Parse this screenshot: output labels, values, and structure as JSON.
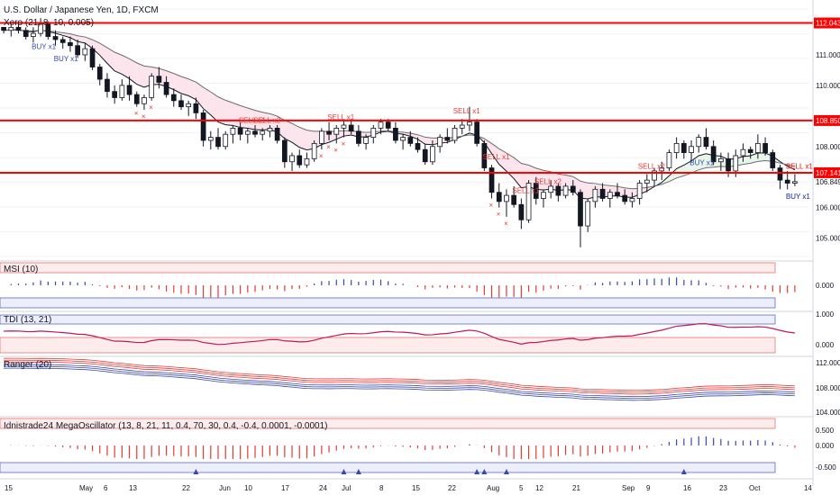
{
  "header": {
    "symbol_title": "U.S. Dollar / Japanese Yen, 1D, FXCM",
    "overlay_label": "Xero (21, 8, 10, 0.005)"
  },
  "colors": {
    "up_candle": "#ffffff",
    "down_candle": "#131722",
    "level_line": "#ff0000",
    "sell": "#e53935",
    "buy": "#3949ab",
    "ema_fast": "#131722",
    "ema_slow": "#6d6d6d",
    "band_pink": "#fce4ec",
    "band_green": "#e8f5e9",
    "band_blue": "#e8eaf6"
  },
  "chart_data": {
    "type": "candlestick",
    "price_axis": {
      "ticks": [
        "112.043",
        "111.000",
        "110.000",
        "108.850",
        "108.000",
        "107.141",
        "106.849",
        "106.000",
        "105.000"
      ],
      "level_lines": [
        112.043,
        108.85,
        107.141
      ],
      "current_price": 106.849
    },
    "x_axis": {
      "ticks": [
        "15",
        "May",
        "6",
        "13",
        "22",
        "Jun",
        "10",
        "17",
        "24",
        "Jul",
        "8",
        "15",
        "22",
        "Aug",
        "5",
        "12",
        "21",
        "Sep",
        "9",
        "16",
        "23",
        "Oct",
        "14"
      ]
    },
    "candles": [
      [
        111.9,
        111.9,
        111.7,
        111.8
      ],
      [
        111.8,
        112.0,
        111.6,
        111.9
      ],
      [
        111.9,
        112.1,
        111.7,
        111.8
      ],
      [
        111.8,
        111.9,
        111.5,
        111.6
      ],
      [
        111.6,
        111.9,
        111.4,
        111.7
      ],
      [
        111.7,
        112.2,
        111.6,
        112.0
      ],
      [
        112.0,
        112.1,
        111.5,
        111.6
      ],
      [
        111.6,
        111.8,
        111.3,
        111.5
      ],
      [
        111.5,
        111.6,
        111.2,
        111.4
      ],
      [
        111.4,
        111.6,
        111.1,
        111.3
      ],
      [
        111.3,
        111.5,
        110.9,
        111.0
      ],
      [
        111.0,
        111.4,
        110.8,
        111.2
      ],
      [
        111.2,
        111.3,
        110.5,
        110.6
      ],
      [
        110.6,
        110.7,
        110.0,
        110.2
      ],
      [
        110.2,
        110.4,
        109.6,
        109.8
      ],
      [
        109.8,
        110.0,
        109.4,
        109.6
      ],
      [
        109.6,
        110.2,
        109.5,
        110.0
      ],
      [
        110.0,
        110.3,
        109.5,
        109.7
      ],
      [
        109.7,
        109.8,
        109.3,
        109.4
      ],
      [
        109.4,
        109.7,
        109.2,
        109.6
      ],
      [
        109.6,
        110.4,
        109.5,
        110.3
      ],
      [
        110.3,
        110.6,
        109.9,
        110.1
      ],
      [
        110.1,
        110.3,
        109.6,
        109.7
      ],
      [
        109.7,
        109.9,
        109.3,
        109.5
      ],
      [
        109.5,
        109.7,
        109.2,
        109.3
      ],
      [
        109.3,
        109.5,
        109.0,
        109.4
      ],
      [
        109.4,
        109.6,
        108.9,
        109.1
      ],
      [
        109.1,
        109.2,
        108.0,
        108.2
      ],
      [
        108.2,
        108.5,
        107.9,
        108.3
      ],
      [
        108.3,
        108.6,
        107.9,
        108.0
      ],
      [
        108.0,
        108.5,
        107.9,
        108.4
      ],
      [
        108.4,
        108.7,
        108.1,
        108.6
      ],
      [
        108.6,
        108.8,
        108.2,
        108.4
      ],
      [
        108.4,
        108.6,
        108.1,
        108.5
      ],
      [
        108.5,
        108.7,
        108.3,
        108.4
      ],
      [
        108.4,
        108.6,
        108.2,
        108.5
      ],
      [
        108.5,
        108.7,
        108.3,
        108.6
      ],
      [
        108.6,
        108.7,
        108.1,
        108.2
      ],
      [
        108.2,
        108.3,
        107.3,
        107.5
      ],
      [
        107.5,
        107.8,
        107.2,
        107.7
      ],
      [
        107.7,
        107.9,
        107.3,
        107.4
      ],
      [
        107.4,
        107.8,
        107.3,
        107.6
      ],
      [
        107.6,
        108.2,
        107.5,
        108.1
      ],
      [
        108.1,
        108.6,
        107.9,
        108.5
      ],
      [
        108.5,
        108.8,
        108.2,
        108.4
      ],
      [
        108.4,
        108.7,
        108.1,
        108.6
      ],
      [
        108.6,
        108.9,
        108.3,
        108.7
      ],
      [
        108.7,
        108.9,
        108.4,
        108.5
      ],
      [
        108.5,
        108.7,
        108.0,
        108.1
      ],
      [
        108.1,
        108.4,
        107.9,
        108.3
      ],
      [
        108.3,
        108.7,
        108.1,
        108.6
      ],
      [
        108.6,
        108.9,
        108.4,
        108.8
      ],
      [
        108.8,
        108.9,
        108.5,
        108.6
      ],
      [
        108.6,
        108.8,
        108.1,
        108.2
      ],
      [
        108.2,
        108.4,
        107.9,
        108.3
      ],
      [
        108.3,
        108.5,
        108.0,
        108.1
      ],
      [
        108.1,
        108.3,
        107.8,
        107.9
      ],
      [
        107.9,
        108.1,
        107.4,
        107.5
      ],
      [
        107.5,
        108.2,
        107.4,
        108.0
      ],
      [
        108.0,
        108.4,
        107.8,
        108.3
      ],
      [
        108.3,
        108.6,
        108.1,
        108.2
      ],
      [
        108.2,
        108.7,
        108.1,
        108.6
      ],
      [
        108.6,
        108.9,
        108.4,
        108.7
      ],
      [
        108.7,
        109.3,
        108.5,
        108.8
      ],
      [
        108.8,
        108.9,
        108.0,
        108.1
      ],
      [
        108.1,
        108.2,
        107.2,
        107.3
      ],
      [
        107.3,
        107.4,
        106.3,
        106.5
      ],
      [
        106.5,
        106.8,
        106.0,
        106.2
      ],
      [
        106.2,
        106.6,
        105.7,
        106.4
      ],
      [
        106.4,
        106.7,
        106.0,
        106.1
      ],
      [
        106.1,
        106.3,
        105.3,
        105.6
      ],
      [
        105.6,
        106.9,
        105.5,
        106.8
      ],
      [
        106.8,
        107.0,
        106.1,
        106.3
      ],
      [
        106.3,
        106.6,
        106.0,
        106.5
      ],
      [
        106.5,
        106.9,
        106.3,
        106.7
      ],
      [
        106.7,
        106.8,
        106.2,
        106.4
      ],
      [
        106.4,
        106.8,
        106.3,
        106.7
      ],
      [
        106.7,
        106.9,
        106.4,
        106.5
      ],
      [
        106.5,
        106.6,
        104.7,
        105.4
      ],
      [
        105.4,
        106.3,
        105.2,
        106.2
      ],
      [
        106.2,
        106.7,
        106.0,
        106.6
      ],
      [
        106.6,
        106.8,
        106.2,
        106.3
      ],
      [
        106.3,
        106.6,
        106.0,
        106.5
      ],
      [
        106.5,
        106.8,
        106.3,
        106.4
      ],
      [
        106.4,
        106.6,
        106.1,
        106.2
      ],
      [
        106.2,
        106.5,
        106.0,
        106.3
      ],
      [
        106.3,
        106.9,
        106.1,
        106.8
      ],
      [
        106.8,
        107.1,
        106.5,
        106.9
      ],
      [
        106.9,
        107.3,
        106.7,
        107.2
      ],
      [
        107.2,
        107.5,
        106.9,
        107.3
      ],
      [
        107.3,
        107.9,
        107.2,
        107.8
      ],
      [
        107.8,
        108.3,
        107.6,
        108.1
      ],
      [
        108.1,
        108.2,
        107.6,
        107.8
      ],
      [
        107.8,
        108.2,
        107.5,
        108.0
      ],
      [
        108.0,
        108.4,
        107.8,
        108.3
      ],
      [
        108.3,
        108.6,
        107.9,
        108.0
      ],
      [
        108.0,
        108.2,
        107.4,
        107.5
      ],
      [
        107.5,
        107.8,
        107.2,
        107.6
      ],
      [
        107.6,
        107.8,
        107.0,
        107.2
      ],
      [
        107.2,
        107.9,
        107.0,
        107.7
      ],
      [
        107.7,
        108.1,
        107.5,
        107.9
      ],
      [
        107.9,
        108.0,
        107.6,
        107.8
      ],
      [
        107.8,
        108.4,
        107.6,
        108.1
      ],
      [
        108.1,
        108.3,
        107.7,
        107.8
      ],
      [
        107.8,
        107.9,
        107.2,
        107.3
      ],
      [
        107.3,
        107.4,
        106.6,
        106.9
      ],
      [
        106.9,
        107.2,
        106.6,
        106.8
      ],
      [
        106.8,
        107.1,
        106.7,
        106.849
      ]
    ],
    "signals": [
      {
        "label": "BUY x1",
        "kind": "buy",
        "index": 5
      },
      {
        "label": "BUY x1",
        "kind": "buy",
        "index": 8
      },
      {
        "label": "SELL x2",
        "kind": "sell",
        "index": 35
      },
      {
        "label": "SELL x1",
        "kind": "sell",
        "index": 33
      },
      {
        "label": "SELL x1",
        "kind": "sell",
        "index": 45
      },
      {
        "label": "SELL x1",
        "kind": "sell",
        "index": 62
      },
      {
        "label": "SELL x1",
        "kind": "sell",
        "index": 70
      },
      {
        "label": "SELL x2",
        "kind": "sell",
        "index": 73
      },
      {
        "label": "SELL x1",
        "kind": "sell",
        "index": 66
      },
      {
        "label": "SELL x2",
        "kind": "sell",
        "index": 87
      },
      {
        "label": "BUY x1",
        "kind": "buy",
        "index": 94
      },
      {
        "label": "SELL x1",
        "kind": "sell",
        "index": 109
      },
      {
        "label": "SELL x1",
        "kind": "sell",
        "index": 114
      },
      {
        "label": "BUY x1",
        "kind": "buy",
        "index": 140
      },
      {
        "label": "BUY x1",
        "kind": "buy",
        "index": 148
      }
    ],
    "panels": [
      {
        "name": "MSI (10)",
        "ticks": [
          "0.000"
        ]
      },
      {
        "name": "TDI (13, 21)",
        "ticks": [
          "1.000",
          "0.000"
        ]
      },
      {
        "name": "Ranger (20)",
        "ticks": [
          "112.000",
          "108.000",
          "104.000"
        ]
      },
      {
        "name": "Idnistrade24 MegaOscillator (13, 8, 21, 11, 0.4, 70, 30, 0.4, -0.4, 0.0001, -0.0001)",
        "ticks": [
          "0.500",
          "0.000",
          "-0.500"
        ]
      }
    ]
  }
}
